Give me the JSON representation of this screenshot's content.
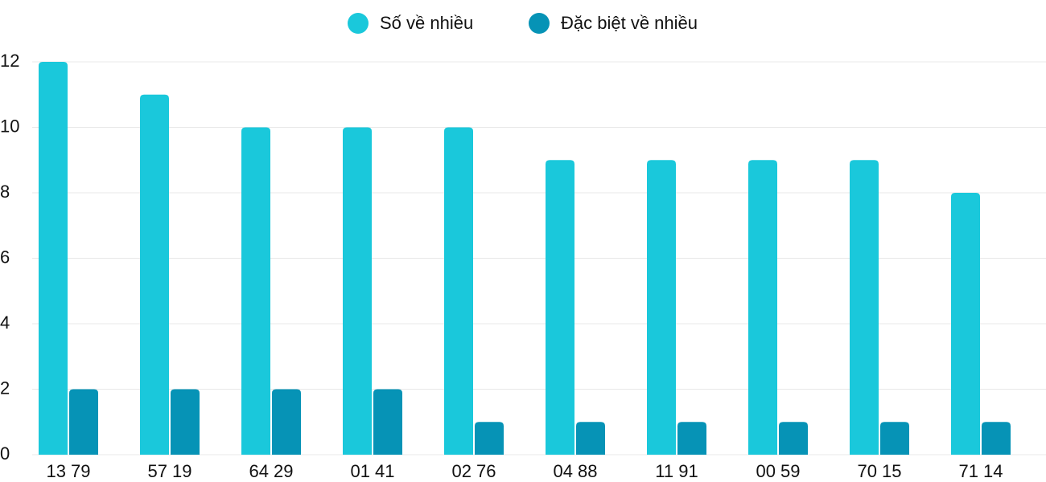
{
  "chart_data": {
    "type": "bar",
    "categories": [
      "13 79",
      "57 19",
      "64 29",
      "01 41",
      "02 76",
      "04 88",
      "11 91",
      "00 59",
      "70 15",
      "71 14"
    ],
    "series": [
      {
        "name": "Số về nhiều",
        "color": "#1ac8db",
        "values": [
          12,
          11,
          10,
          10,
          10,
          9,
          9,
          9,
          9,
          8
        ]
      },
      {
        "name": "Đặc biệt về nhiều",
        "color": "#0693b6",
        "values": [
          2,
          2,
          2,
          2,
          1,
          1,
          1,
          1,
          1,
          1
        ]
      }
    ],
    "ylim": [
      0,
      12
    ],
    "yticks": [
      0,
      2,
      4,
      6,
      8,
      10,
      12
    ],
    "grid": true,
    "legend": "top"
  }
}
